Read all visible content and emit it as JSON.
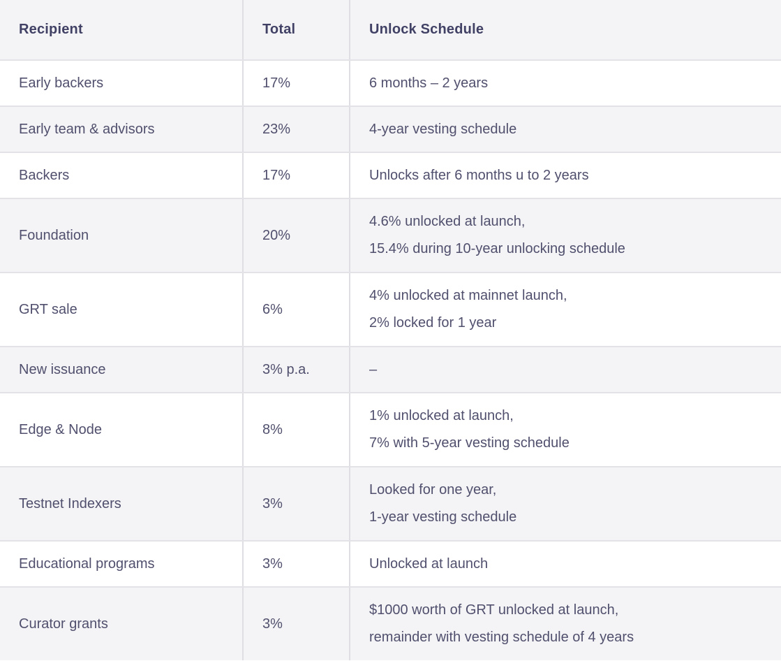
{
  "table": {
    "columns": [
      {
        "label": "Recipient"
      },
      {
        "label": "Total"
      },
      {
        "label": "Unlock Schedule"
      }
    ],
    "rows": [
      {
        "recipient": "Early backers",
        "total": "17%",
        "schedule": [
          "6 months – 2 years"
        ]
      },
      {
        "recipient": "Early team & advisors",
        "total": "23%",
        "schedule": [
          "4-year vesting schedule"
        ]
      },
      {
        "recipient": "Backers",
        "total": "17%",
        "schedule": [
          "Unlocks after 6 months u to 2 years"
        ]
      },
      {
        "recipient": "Foundation",
        "total": "20%",
        "schedule": [
          "4.6% unlocked at launch,",
          "15.4% during 10-year unlocking schedule"
        ]
      },
      {
        "recipient": "GRT sale",
        "total": "6%",
        "schedule": [
          "4% unlocked at mainnet launch,",
          "2% locked for 1 year"
        ]
      },
      {
        "recipient": "New issuance",
        "total": "3% p.a.",
        "schedule": [
          "–"
        ]
      },
      {
        "recipient": "Edge & Node",
        "total": "8%",
        "schedule": [
          "1% unlocked at launch,",
          "7% with 5-year vesting schedule"
        ]
      },
      {
        "recipient": "Testnet Indexers",
        "total": "3%",
        "schedule": [
          "Looked for one year,",
          "1-year vesting schedule"
        ]
      },
      {
        "recipient": "Educational programs",
        "total": "3%",
        "schedule": [
          "Unlocked at launch"
        ]
      },
      {
        "recipient": "Curator grants",
        "total": "3%",
        "schedule": [
          "$1000 worth of GRT unlocked at launch,",
          "remainder with vesting schedule of 4 years"
        ]
      }
    ]
  },
  "colors": {
    "header_bg": "#f4f4f6",
    "alt_row_bg": "#f4f4f6",
    "row_bg": "#ffffff",
    "horizontal_border": "#e3e3e7",
    "vertical_border": "#dfdfe3",
    "header_text": "#414166",
    "body_text": "#50506e"
  }
}
